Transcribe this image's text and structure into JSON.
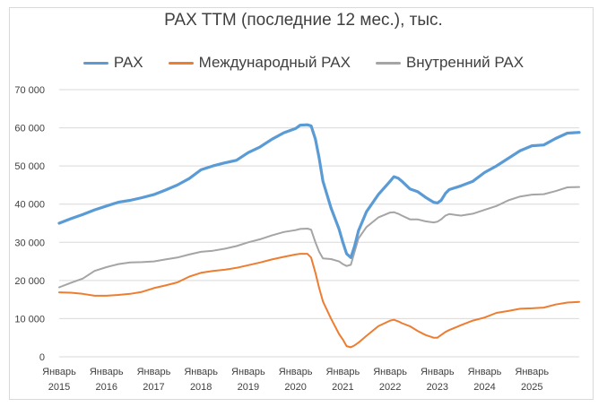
{
  "chart_data": {
    "type": "line",
    "title": "PAX  TTM (последние 12 мес.), тыс.",
    "ylim": [
      0,
      70000
    ],
    "yticks": [
      0,
      10000,
      20000,
      30000,
      40000,
      50000,
      60000,
      70000
    ],
    "ytick_labels": [
      "0",
      "10 000",
      "20 000",
      "30 000",
      "40 000",
      "50 000",
      "60 000",
      "70 000"
    ],
    "xlim": [
      2015.0,
      2026.0
    ],
    "xticks": [
      {
        "pos": 2015,
        "line1": "Январь",
        "line2": "2015"
      },
      {
        "pos": 2016,
        "line1": "Январь",
        "line2": "2016"
      },
      {
        "pos": 2017,
        "line1": "Январь",
        "line2": "2017"
      },
      {
        "pos": 2018,
        "line1": "Январь",
        "line2": "2018"
      },
      {
        "pos": 2019,
        "line1": "Январь",
        "line2": "2019"
      },
      {
        "pos": 2020,
        "line1": "Январь",
        "line2": "2020"
      },
      {
        "pos": 2021,
        "line1": "Январь",
        "line2": "2021"
      },
      {
        "pos": 2022,
        "line1": "Январь",
        "line2": "2022"
      },
      {
        "pos": 2023,
        "line1": "Январь",
        "line2": "2023"
      },
      {
        "pos": 2024,
        "line1": "Январь",
        "line2": "2024"
      },
      {
        "pos": 2025,
        "line1": "Январь",
        "line2": "2025"
      }
    ],
    "grid": true,
    "legend_position": "top",
    "series": [
      {
        "name": "PAX",
        "color": "#5b9bd5",
        "points": [
          [
            2015.0,
            35000
          ],
          [
            2015.25,
            36200
          ],
          [
            2015.5,
            37300
          ],
          [
            2015.75,
            38500
          ],
          [
            2016.0,
            39500
          ],
          [
            2016.25,
            40500
          ],
          [
            2016.5,
            41000
          ],
          [
            2016.75,
            41700
          ],
          [
            2017.0,
            42500
          ],
          [
            2017.25,
            43700
          ],
          [
            2017.5,
            45000
          ],
          [
            2017.75,
            46700
          ],
          [
            2018.0,
            49000
          ],
          [
            2018.25,
            50000
          ],
          [
            2018.5,
            50800
          ],
          [
            2018.75,
            51500
          ],
          [
            2019.0,
            53500
          ],
          [
            2019.25,
            55000
          ],
          [
            2019.5,
            57000
          ],
          [
            2019.75,
            58700
          ],
          [
            2020.0,
            59800
          ],
          [
            2020.1,
            60700
          ],
          [
            2020.25,
            60800
          ],
          [
            2020.33,
            60500
          ],
          [
            2020.42,
            57000
          ],
          [
            2020.5,
            52000
          ],
          [
            2020.58,
            46000
          ],
          [
            2020.75,
            39000
          ],
          [
            2020.92,
            33500
          ],
          [
            2021.0,
            30000
          ],
          [
            2021.08,
            27000
          ],
          [
            2021.17,
            26000
          ],
          [
            2021.25,
            29000
          ],
          [
            2021.33,
            33000
          ],
          [
            2021.5,
            38000
          ],
          [
            2021.75,
            42500
          ],
          [
            2022.0,
            46000
          ],
          [
            2022.08,
            47200
          ],
          [
            2022.17,
            46800
          ],
          [
            2022.25,
            46000
          ],
          [
            2022.42,
            44000
          ],
          [
            2022.58,
            43300
          ],
          [
            2022.75,
            41800
          ],
          [
            2022.92,
            40500
          ],
          [
            2023.0,
            40300
          ],
          [
            2023.08,
            41000
          ],
          [
            2023.17,
            42800
          ],
          [
            2023.25,
            43800
          ],
          [
            2023.5,
            44800
          ],
          [
            2023.75,
            46000
          ],
          [
            2024.0,
            48300
          ],
          [
            2024.25,
            50000
          ],
          [
            2024.5,
            52000
          ],
          [
            2024.75,
            54000
          ],
          [
            2025.0,
            55300
          ],
          [
            2025.25,
            55500
          ],
          [
            2025.5,
            57200
          ],
          [
            2025.75,
            58600
          ],
          [
            2026.0,
            58800
          ]
        ]
      },
      {
        "name": "Международный PAX",
        "color": "#ed7d31",
        "points": [
          [
            2015.0,
            16900
          ],
          [
            2015.25,
            16800
          ],
          [
            2015.5,
            16500
          ],
          [
            2015.75,
            16000
          ],
          [
            2016.0,
            16000
          ],
          [
            2016.25,
            16200
          ],
          [
            2016.5,
            16500
          ],
          [
            2016.75,
            17000
          ],
          [
            2017.0,
            18000
          ],
          [
            2017.25,
            18700
          ],
          [
            2017.5,
            19500
          ],
          [
            2017.75,
            21000
          ],
          [
            2018.0,
            22000
          ],
          [
            2018.25,
            22500
          ],
          [
            2018.5,
            22800
          ],
          [
            2018.75,
            23300
          ],
          [
            2019.0,
            24000
          ],
          [
            2019.25,
            24700
          ],
          [
            2019.5,
            25500
          ],
          [
            2019.75,
            26200
          ],
          [
            2020.0,
            26800
          ],
          [
            2020.1,
            27000
          ],
          [
            2020.25,
            27000
          ],
          [
            2020.33,
            26000
          ],
          [
            2020.42,
            22000
          ],
          [
            2020.5,
            18000
          ],
          [
            2020.58,
            14500
          ],
          [
            2020.75,
            10000
          ],
          [
            2020.92,
            6000
          ],
          [
            2021.0,
            4500
          ],
          [
            2021.08,
            2800
          ],
          [
            2021.17,
            2500
          ],
          [
            2021.25,
            3000
          ],
          [
            2021.33,
            3700
          ],
          [
            2021.5,
            5500
          ],
          [
            2021.75,
            8000
          ],
          [
            2022.0,
            9500
          ],
          [
            2022.08,
            9700
          ],
          [
            2022.17,
            9300
          ],
          [
            2022.25,
            8800
          ],
          [
            2022.42,
            8000
          ],
          [
            2022.58,
            6800
          ],
          [
            2022.75,
            5700
          ],
          [
            2022.92,
            5000
          ],
          [
            2023.0,
            5000
          ],
          [
            2023.08,
            5700
          ],
          [
            2023.17,
            6500
          ],
          [
            2023.25,
            7000
          ],
          [
            2023.5,
            8300
          ],
          [
            2023.75,
            9500
          ],
          [
            2024.0,
            10300
          ],
          [
            2024.25,
            11500
          ],
          [
            2024.5,
            12000
          ],
          [
            2024.75,
            12600
          ],
          [
            2025.0,
            12700
          ],
          [
            2025.25,
            12900
          ],
          [
            2025.5,
            13700
          ],
          [
            2025.75,
            14200
          ],
          [
            2026.0,
            14400
          ]
        ]
      },
      {
        "name": "Внутренний PAX",
        "color": "#a5a5a5",
        "points": [
          [
            2015.0,
            18200
          ],
          [
            2015.25,
            19400
          ],
          [
            2015.5,
            20500
          ],
          [
            2015.75,
            22500
          ],
          [
            2016.0,
            23500
          ],
          [
            2016.25,
            24300
          ],
          [
            2016.5,
            24700
          ],
          [
            2016.75,
            24800
          ],
          [
            2017.0,
            25000
          ],
          [
            2017.25,
            25500
          ],
          [
            2017.5,
            26000
          ],
          [
            2017.75,
            26800
          ],
          [
            2018.0,
            27500
          ],
          [
            2018.25,
            27800
          ],
          [
            2018.5,
            28300
          ],
          [
            2018.75,
            29000
          ],
          [
            2019.0,
            30000
          ],
          [
            2019.25,
            30800
          ],
          [
            2019.5,
            31800
          ],
          [
            2019.75,
            32700
          ],
          [
            2020.0,
            33200
          ],
          [
            2020.1,
            33500
          ],
          [
            2020.25,
            33600
          ],
          [
            2020.33,
            33300
          ],
          [
            2020.42,
            30000
          ],
          [
            2020.5,
            27500
          ],
          [
            2020.58,
            25800
          ],
          [
            2020.75,
            25600
          ],
          [
            2020.92,
            25000
          ],
          [
            2021.0,
            24300
          ],
          [
            2021.08,
            23800
          ],
          [
            2021.17,
            24100
          ],
          [
            2021.25,
            27500
          ],
          [
            2021.33,
            31000
          ],
          [
            2021.5,
            34000
          ],
          [
            2021.75,
            36500
          ],
          [
            2022.0,
            37800
          ],
          [
            2022.08,
            37900
          ],
          [
            2022.17,
            37500
          ],
          [
            2022.25,
            37000
          ],
          [
            2022.42,
            36000
          ],
          [
            2022.58,
            36000
          ],
          [
            2022.75,
            35500
          ],
          [
            2022.92,
            35200
          ],
          [
            2023.0,
            35400
          ],
          [
            2023.08,
            36000
          ],
          [
            2023.17,
            37000
          ],
          [
            2023.25,
            37400
          ],
          [
            2023.5,
            37000
          ],
          [
            2023.75,
            37500
          ],
          [
            2024.0,
            38500
          ],
          [
            2024.25,
            39500
          ],
          [
            2024.5,
            41000
          ],
          [
            2024.75,
            42000
          ],
          [
            2025.0,
            42500
          ],
          [
            2025.25,
            42600
          ],
          [
            2025.5,
            43400
          ],
          [
            2025.75,
            44400
          ],
          [
            2026.0,
            44500
          ]
        ]
      }
    ]
  }
}
